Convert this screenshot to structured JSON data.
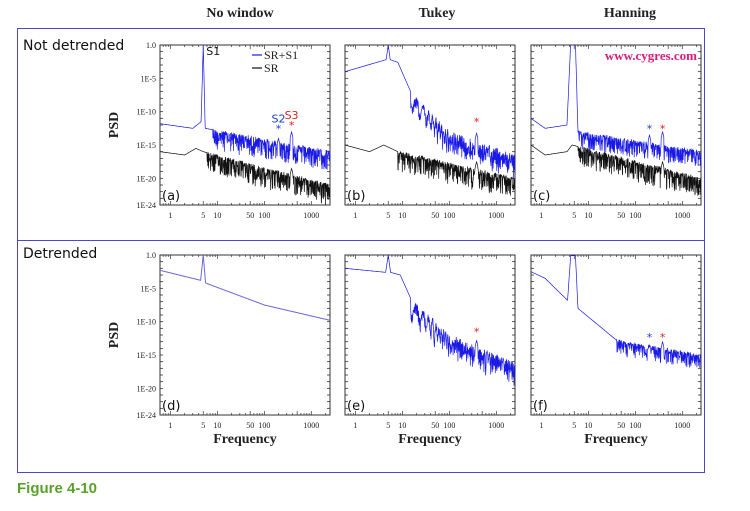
{
  "figure": {
    "column_titles": [
      "No window",
      "Tukey",
      "Hanning"
    ],
    "row_labels": [
      "Not detrended",
      "Detrended"
    ],
    "caption": "Figure 4-10",
    "watermark": "www.cygres.com",
    "colors": {
      "frame": "#4a4ac8",
      "signal": "#1a1ae6",
      "signal_smooth": "#6a6ad8",
      "noise": "#111111",
      "marker_s2": "#1a3fc8",
      "marker_s3": "#e02020",
      "caption": "#5aa02c",
      "watermark": "#d81b7a"
    }
  },
  "chart_data": [
    {
      "id": "a",
      "panel_label": "(a)",
      "row": 0,
      "col": 0,
      "type": "line",
      "title": "No window / Not detrended",
      "xlabel": "",
      "ylabel": "PSD",
      "xscale": "log",
      "yscale": "log",
      "xlim": [
        0.6,
        2500
      ],
      "ylim": [
        1e-24,
        1.0
      ],
      "xticks": [
        {
          "v": 1,
          "label": "1"
        },
        {
          "v": 5,
          "label": "5"
        },
        {
          "v": 10,
          "label": "10"
        },
        {
          "v": 50,
          "label": "50"
        },
        {
          "v": 100,
          "label": "100"
        },
        {
          "v": 1000,
          "label": "1000"
        }
      ],
      "yticks": [
        {
          "v": 0,
          "label": "1.0"
        },
        {
          "v": -5,
          "label": "1E-5"
        },
        {
          "v": -10,
          "label": "1E-10"
        },
        {
          "v": -15,
          "label": "1E-15"
        },
        {
          "v": -20,
          "label": "1E-20"
        },
        {
          "v": -24,
          "label": "1E-24"
        }
      ],
      "legend": {
        "entries": [
          "SR+S1",
          "SR"
        ],
        "placement": "top-right"
      },
      "annotations": [
        {
          "text": "S1",
          "x": 5,
          "y_log": 0
        },
        {
          "text": "S2",
          "x": 200,
          "y_log": -12.5,
          "marker": "*",
          "color": "marker_s2"
        },
        {
          "text": "S3",
          "x": 380,
          "y_log": -12,
          "marker": "*",
          "color": "marker_s3"
        }
      ],
      "series": [
        {
          "name": "SR+S1",
          "style": "noisy",
          "color": "signal",
          "base": [
            [
              0.6,
              -11.8
            ],
            [
              3,
              -12.5
            ],
            [
              4.5,
              -11.5
            ],
            [
              5,
              0
            ],
            [
              5.5,
              -12.5
            ],
            [
              2500,
              -16
            ]
          ],
          "noise_amp": 3,
          "noise_start": 8,
          "peaks": [
            [
              200,
              -14
            ],
            [
              380,
              -13
            ]
          ]
        },
        {
          "name": "SR",
          "style": "noisy",
          "color": "noise",
          "base": [
            [
              0.6,
              -16
            ],
            [
              2,
              -16.5
            ],
            [
              3.5,
              -15.5
            ],
            [
              5,
              -16
            ],
            [
              2500,
              -21
            ]
          ],
          "noise_amp": 3,
          "noise_start": 6,
          "peaks": [
            [
              380,
              -18.5
            ]
          ]
        }
      ]
    },
    {
      "id": "b",
      "panel_label": "(b)",
      "row": 0,
      "col": 1,
      "type": "line",
      "title": "Tukey / Not detrended",
      "xlabel": "",
      "ylabel": "",
      "xscale": "log",
      "yscale": "log",
      "xlim": [
        0.6,
        2500
      ],
      "ylim": [
        1e-24,
        1.0
      ],
      "xticks": [
        {
          "v": 1,
          "label": "1"
        },
        {
          "v": 5,
          "label": "5"
        },
        {
          "v": 10,
          "label": "10"
        },
        {
          "v": 50,
          "label": "50"
        },
        {
          "v": 100,
          "label": "100"
        },
        {
          "v": 1000,
          "label": "1000"
        }
      ],
      "annotations": [
        {
          "text": "",
          "x": 380,
          "y_log": -11.5,
          "marker": "*",
          "color": "marker_s3"
        }
      ],
      "series": [
        {
          "name": "SR+S1",
          "style": "lobes",
          "color": "signal",
          "base": [
            [
              0.6,
              -4
            ],
            [
              4.5,
              -2.2
            ],
            [
              5,
              0
            ],
            [
              5.5,
              -2.2
            ],
            [
              8,
              -2.6
            ],
            [
              15,
              -7
            ],
            [
              100,
              -13
            ],
            [
              380,
              -14.5
            ],
            [
              2500,
              -16.5
            ]
          ],
          "noise_amp": 2.5,
          "noise_start": 15,
          "peaks": [
            [
              380,
              -13.2
            ]
          ]
        },
        {
          "name": "SR",
          "style": "noisy",
          "color": "noise",
          "base": [
            [
              0.6,
              -15
            ],
            [
              2,
              -16
            ],
            [
              4,
              -15
            ],
            [
              8,
              -16
            ],
            [
              2500,
              -20
            ]
          ],
          "noise_amp": 3,
          "noise_start": 8,
          "peaks": [
            [
              380,
              -17.5
            ]
          ]
        }
      ]
    },
    {
      "id": "c",
      "panel_label": "(c)",
      "row": 0,
      "col": 2,
      "type": "line",
      "title": "Hanning / Not detrended",
      "xlabel": "",
      "ylabel": "",
      "xscale": "log",
      "yscale": "log",
      "xlim": [
        0.6,
        2500
      ],
      "ylim": [
        1e-24,
        1.0
      ],
      "xticks": [
        {
          "v": 1,
          "label": "1"
        },
        {
          "v": 5,
          "label": "5"
        },
        {
          "v": 10,
          "label": "10"
        },
        {
          "v": 50,
          "label": "50"
        },
        {
          "v": 100,
          "label": "100"
        },
        {
          "v": 1000,
          "label": "1000"
        }
      ],
      "annotations": [
        {
          "text": "",
          "x": 200,
          "y_log": -12.5,
          "marker": "*",
          "color": "marker_s2"
        },
        {
          "text": "",
          "x": 380,
          "y_log": -12.5,
          "marker": "*",
          "color": "marker_s3"
        }
      ],
      "series": [
        {
          "name": "SR+S1",
          "style": "noisy",
          "color": "signal",
          "base": [
            [
              0.6,
              -11
            ],
            [
              1.2,
              -12.5
            ],
            [
              3.5,
              -12
            ],
            [
              4.2,
              0.3
            ],
            [
              5.3,
              0.3
            ],
            [
              6,
              -13
            ],
            [
              2500,
              -16
            ]
          ],
          "noise_amp": 2.5,
          "noise_start": 6,
          "peaks": [
            [
              200,
              -13.5
            ],
            [
              380,
              -13
            ]
          ]
        },
        {
          "name": "SR",
          "style": "noisy",
          "color": "noise",
          "base": [
            [
              0.6,
              -15
            ],
            [
              1.2,
              -16.5
            ],
            [
              3.5,
              -16
            ],
            [
              4.5,
              -15
            ],
            [
              2500,
              -20
            ]
          ],
          "noise_amp": 3,
          "noise_start": 6,
          "peaks": [
            [
              380,
              -17.5
            ]
          ]
        }
      ]
    },
    {
      "id": "d",
      "panel_label": "(d)",
      "row": 1,
      "col": 0,
      "type": "line",
      "title": "No window / Detrended",
      "xlabel": "Frequency",
      "ylabel": "PSD",
      "xscale": "log",
      "yscale": "log",
      "xlim": [
        0.6,
        2500
      ],
      "ylim": [
        1e-24,
        1.0
      ],
      "xticks": [
        {
          "v": 1,
          "label": "1"
        },
        {
          "v": 5,
          "label": "5"
        },
        {
          "v": 10,
          "label": "10"
        },
        {
          "v": 50,
          "label": "50"
        },
        {
          "v": 100,
          "label": "100"
        },
        {
          "v": 1000,
          "label": "1000"
        }
      ],
      "yticks": [
        {
          "v": 0,
          "label": "1.0"
        },
        {
          "v": -5,
          "label": "1E-5"
        },
        {
          "v": -10,
          "label": "1E-10"
        },
        {
          "v": -15,
          "label": "1E-15"
        },
        {
          "v": -20,
          "label": "1E-20"
        },
        {
          "v": -24,
          "label": "1E-24"
        }
      ],
      "series": [
        {
          "name": "SR+S1",
          "style": "smooth",
          "color": "signal_smooth",
          "base": [
            [
              0.6,
              -2.3
            ],
            [
              4.4,
              -3.8
            ],
            [
              5,
              0
            ],
            [
              5.6,
              -4.2
            ],
            [
              100,
              -7.5
            ],
            [
              2500,
              -9.8
            ]
          ]
        }
      ]
    },
    {
      "id": "e",
      "panel_label": "(e)",
      "row": 1,
      "col": 1,
      "type": "line",
      "title": "Tukey / Detrended",
      "xlabel": "Frequency",
      "ylabel": "",
      "xscale": "log",
      "yscale": "log",
      "xlim": [
        0.6,
        2500
      ],
      "ylim": [
        1e-24,
        1.0
      ],
      "xticks": [
        {
          "v": 1,
          "label": "1"
        },
        {
          "v": 5,
          "label": "5"
        },
        {
          "v": 10,
          "label": "10"
        },
        {
          "v": 50,
          "label": "50"
        },
        {
          "v": 100,
          "label": "100"
        },
        {
          "v": 1000,
          "label": "1000"
        }
      ],
      "annotations": [
        {
          "text": "",
          "x": 380,
          "y_log": -11.5,
          "marker": "*",
          "color": "marker_s3"
        }
      ],
      "series": [
        {
          "name": "SR+S1",
          "style": "lobes",
          "color": "signal",
          "base": [
            [
              0.6,
              -2
            ],
            [
              4.4,
              -2.6
            ],
            [
              5,
              0
            ],
            [
              5.6,
              -2.6
            ],
            [
              9,
              -3
            ],
            [
              15,
              -6.5
            ],
            [
              100,
              -12
            ],
            [
              380,
              -13.8
            ],
            [
              2500,
              -16
            ]
          ],
          "noise_amp": 2.5,
          "noise_start": 15,
          "peaks": [
            [
              380,
              -12.8
            ]
          ]
        }
      ]
    },
    {
      "id": "f",
      "panel_label": "(f)",
      "row": 1,
      "col": 2,
      "type": "line",
      "title": "Hanning / Detrended",
      "xlabel": "Frequency",
      "ylabel": "",
      "xscale": "log",
      "yscale": "log",
      "xlim": [
        0.6,
        2500
      ],
      "ylim": [
        1e-24,
        1.0
      ],
      "xticks": [
        {
          "v": 1,
          "label": "1"
        },
        {
          "v": 5,
          "label": "5"
        },
        {
          "v": 10,
          "label": "10"
        },
        {
          "v": 50,
          "label": "50"
        },
        {
          "v": 100,
          "label": "100"
        },
        {
          "v": 1000,
          "label": "1000"
        }
      ],
      "annotations": [
        {
          "text": "",
          "x": 200,
          "y_log": -12.3,
          "marker": "*",
          "color": "marker_s2"
        },
        {
          "text": "",
          "x": 380,
          "y_log": -12.3,
          "marker": "*",
          "color": "marker_s3"
        }
      ],
      "series": [
        {
          "name": "SR+S1",
          "style": "noisy",
          "color": "signal",
          "base": [
            [
              0.6,
              -2.5
            ],
            [
              1.2,
              -3.5
            ],
            [
              3.6,
              -6.8
            ],
            [
              4.2,
              -0.1
            ],
            [
              5.3,
              -0.1
            ],
            [
              6,
              -8
            ],
            [
              40,
              -12.8
            ],
            [
              2500,
              -15
            ]
          ],
          "noise_amp": 2.2,
          "noise_start": 40,
          "peaks": [
            [
              200,
              -13.5
            ],
            [
              380,
              -13
            ]
          ]
        }
      ]
    }
  ]
}
